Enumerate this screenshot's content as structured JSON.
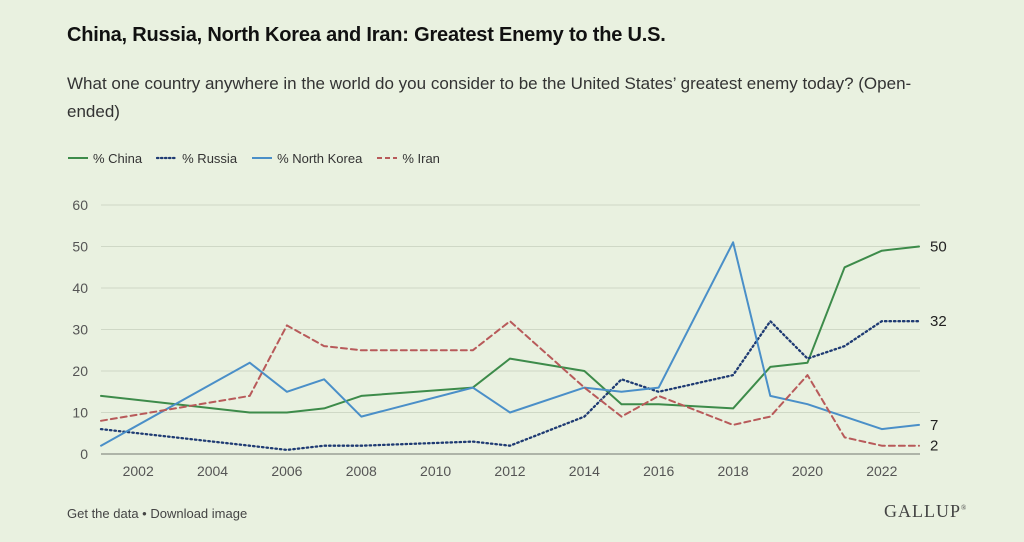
{
  "header": {
    "title": "China, Russia, North Korea and Iran: Greatest Enemy to the U.S.",
    "subtitle": "What one country anywhere in the world do you consider to be the United States’ greatest enemy today? (Open-ended)"
  },
  "footer": {
    "get_data": "Get the data",
    "separator": " • ",
    "download": "Download image"
  },
  "brand": {
    "logo_text": "GALLUP",
    "logo_mark": "®"
  },
  "chart_data": {
    "type": "line",
    "xlim": [
      2001,
      2023
    ],
    "ylim": [
      0,
      60
    ],
    "yticks": [
      0,
      10,
      20,
      30,
      40,
      50,
      60
    ],
    "xticks": [
      2002,
      2004,
      2006,
      2008,
      2010,
      2012,
      2014,
      2016,
      2018,
      2020,
      2022
    ],
    "grid": true,
    "legend_position": "top-left",
    "series": [
      {
        "name": "% China",
        "color": "#3d8b4a",
        "style": "solid",
        "points": [
          [
            2001,
            14
          ],
          [
            2005,
            10
          ],
          [
            2006,
            10
          ],
          [
            2007,
            11
          ],
          [
            2008,
            14
          ],
          [
            2011,
            16
          ],
          [
            2012,
            23
          ],
          [
            2014,
            20
          ],
          [
            2015,
            12
          ],
          [
            2016,
            12
          ],
          [
            2018,
            11
          ],
          [
            2019,
            21
          ],
          [
            2020,
            22
          ],
          [
            2021,
            45
          ],
          [
            2022,
            49
          ],
          [
            2023,
            50
          ]
        ]
      },
      {
        "name": "% Russia",
        "color": "#1f3b73",
        "style": "dotted",
        "points": [
          [
            2001,
            6
          ],
          [
            2005,
            2
          ],
          [
            2006,
            1
          ],
          [
            2007,
            2
          ],
          [
            2008,
            2
          ],
          [
            2011,
            3
          ],
          [
            2012,
            2
          ],
          [
            2014,
            9
          ],
          [
            2015,
            18
          ],
          [
            2016,
            15
          ],
          [
            2018,
            19
          ],
          [
            2019,
            32
          ],
          [
            2020,
            23
          ],
          [
            2021,
            26
          ],
          [
            2022,
            32
          ],
          [
            2023,
            32
          ]
        ]
      },
      {
        "name": "% North Korea",
        "color": "#4a8fc8",
        "style": "solid",
        "points": [
          [
            2001,
            2
          ],
          [
            2005,
            22
          ],
          [
            2006,
            15
          ],
          [
            2007,
            18
          ],
          [
            2008,
            9
          ],
          [
            2011,
            16
          ],
          [
            2012,
            10
          ],
          [
            2014,
            16
          ],
          [
            2015,
            15
          ],
          [
            2016,
            16
          ],
          [
            2018,
            51
          ],
          [
            2019,
            14
          ],
          [
            2020,
            12
          ],
          [
            2022,
            6
          ],
          [
            2023,
            7
          ]
        ]
      },
      {
        "name": "% Iran",
        "color": "#b85a5a",
        "style": "dashed",
        "points": [
          [
            2001,
            8
          ],
          [
            2005,
            14
          ],
          [
            2006,
            31
          ],
          [
            2007,
            26
          ],
          [
            2008,
            25
          ],
          [
            2011,
            25
          ],
          [
            2012,
            32
          ],
          [
            2014,
            16
          ],
          [
            2015,
            9
          ],
          [
            2016,
            14
          ],
          [
            2018,
            7
          ],
          [
            2019,
            9
          ],
          [
            2020,
            19
          ],
          [
            2021,
            4
          ],
          [
            2022,
            2
          ],
          [
            2023,
            2
          ]
        ]
      }
    ],
    "end_labels": [
      {
        "series": "% China",
        "text": "50",
        "value": 50
      },
      {
        "series": "% Russia",
        "text": "32",
        "value": 32
      },
      {
        "series": "% North Korea",
        "text": "7",
        "value": 7
      },
      {
        "series": "% Iran",
        "text": "2",
        "value": 2
      }
    ]
  }
}
